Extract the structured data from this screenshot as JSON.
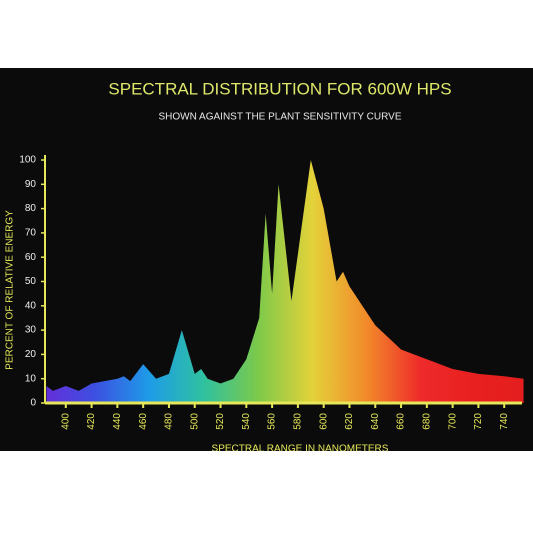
{
  "chart_data": {
    "type": "area",
    "title": "SPECTRAL DISTRIBUTION FOR 600W HPS",
    "subtitle": "SHOWN AGAINST THE PLANT SENSITIVITY CURVE",
    "y_label": "PERCENT OF RELATIVE ENERGY",
    "x_label": "SPECTRAL RANGE IN NANOMETERS",
    "x": [
      385,
      390,
      400,
      410,
      420,
      430,
      440,
      445,
      450,
      460,
      470,
      480,
      490,
      500,
      505,
      510,
      520,
      530,
      540,
      550,
      555,
      560,
      565,
      575,
      590,
      600,
      610,
      615,
      620,
      640,
      660,
      680,
      700,
      720,
      740,
      755
    ],
    "values": [
      7,
      5,
      7,
      5,
      8,
      9,
      10,
      11,
      9,
      16,
      10,
      12,
      30,
      12,
      14,
      10,
      8,
      10,
      18,
      35,
      78,
      45,
      90,
      42,
      100,
      80,
      50,
      54,
      48,
      32,
      22,
      18,
      14,
      12,
      11,
      10
    ],
    "gradient": [
      "#6a2bd8",
      "#3d4fe0",
      "#1e9be8",
      "#2fc1a0",
      "#7cc94a",
      "#e4d23a",
      "#f28a2a",
      "#ee2a2a",
      "#e8201f",
      "#e31e1e"
    ],
    "xlim": [
      380,
      760
    ],
    "ylim": [
      0,
      100
    ],
    "xticks": [
      400,
      420,
      440,
      460,
      480,
      500,
      520,
      540,
      560,
      580,
      600,
      620,
      640,
      660,
      680,
      700,
      720,
      740
    ],
    "yticks": [
      0,
      10,
      20,
      30,
      40,
      50,
      60,
      70,
      80,
      90,
      100
    ],
    "axis_color": "#e6e85a"
  }
}
